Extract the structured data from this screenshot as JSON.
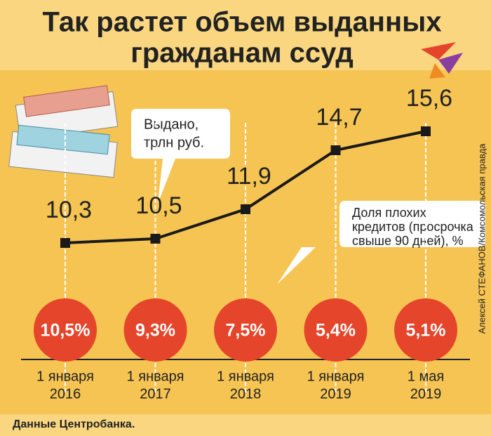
{
  "chart_data": {
    "type": "line",
    "title": [
      "Так растет объем выданных",
      "гражданам ссуд"
    ],
    "categories": [
      [
        "1 января",
        "2016"
      ],
      [
        "1 января",
        "2017"
      ],
      [
        "1 января",
        "2018"
      ],
      [
        "1 января",
        "2019"
      ],
      [
        "1 мая",
        "2019"
      ]
    ],
    "series": [
      {
        "name": [
          "Выдано,",
          "трлн руб."
        ],
        "color": "#1a1a1a",
        "values": [
          10.3,
          10.5,
          11.9,
          14.7,
          15.6
        ],
        "value_labels": [
          "10,3",
          "10,5",
          "11,9",
          "14,7",
          "15,6"
        ]
      },
      {
        "name": [
          "Доля плохих",
          "кредитов (просрочка",
          "свыше 90 дней), %"
        ],
        "color": "#e5452a",
        "values": [
          10.5,
          9.3,
          7.5,
          5.4,
          5.1
        ],
        "value_labels": [
          "10,5%",
          "9,3%",
          "7,5%",
          "5,4%",
          "5,1%"
        ]
      }
    ],
    "ylim": [
      9.5,
      16.5
    ],
    "credit": "Алексей СТЕФАНОВ/Комсомольская правда",
    "source": "Данные Центробанка."
  }
}
